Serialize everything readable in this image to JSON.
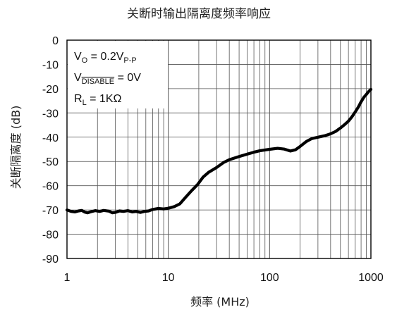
{
  "chart_data": {
    "type": "line",
    "title": "关断时输出隔离度频率响应",
    "xlabel": "频率 (MHz)",
    "ylabel": "关断隔离度 (dB)",
    "x_scale": "log",
    "xlim": [
      1,
      1000
    ],
    "ylim": [
      -90,
      0
    ],
    "x_ticks": [
      "1",
      "10",
      "100",
      "1000"
    ],
    "y_ticks": [
      "0",
      "-10",
      "-20",
      "-30",
      "-40",
      "-50",
      "-60",
      "-70",
      "-80",
      "-90"
    ],
    "grid": true,
    "annotations": [
      {
        "main": "V",
        "sub": "O",
        "suffix": " = 0.2V",
        "sub2": "P-P"
      },
      {
        "main": "V",
        "sub": "DISABLE",
        "suffix": " = 0V",
        "overline": true
      },
      {
        "main": "R",
        "sub": "L",
        "suffix": " = 1KΩ"
      }
    ],
    "series": [
      {
        "color": "#000000",
        "points": [
          [
            1.0,
            -70.0
          ],
          [
            1.1,
            -70.6
          ],
          [
            1.2,
            -70.8
          ],
          [
            1.3,
            -70.4
          ],
          [
            1.4,
            -70.2
          ],
          [
            1.5,
            -70.9
          ],
          [
            1.6,
            -71.2
          ],
          [
            1.7,
            -70.8
          ],
          [
            1.9,
            -70.3
          ],
          [
            2.1,
            -70.6
          ],
          [
            2.3,
            -70.2
          ],
          [
            2.6,
            -70.5
          ],
          [
            2.8,
            -71.2
          ],
          [
            3.0,
            -71.0
          ],
          [
            3.3,
            -70.4
          ],
          [
            3.6,
            -70.6
          ],
          [
            4.0,
            -70.3
          ],
          [
            4.4,
            -70.8
          ],
          [
            4.8,
            -70.6
          ],
          [
            5.3,
            -71.0
          ],
          [
            5.8,
            -70.6
          ],
          [
            6.4,
            -70.4
          ],
          [
            7.0,
            -69.8
          ],
          [
            8.0,
            -69.4
          ],
          [
            9.0,
            -69.6
          ],
          [
            10.0,
            -69.3
          ],
          [
            11.5,
            -68.6
          ],
          [
            13.0,
            -67.5
          ],
          [
            15.0,
            -64.5
          ],
          [
            17.0,
            -62.0
          ],
          [
            19.5,
            -59.5
          ],
          [
            22.0,
            -56.5
          ],
          [
            25.0,
            -54.5
          ],
          [
            30.0,
            -52.5
          ],
          [
            35.0,
            -50.5
          ],
          [
            40.0,
            -49.3
          ],
          [
            50.0,
            -48.0
          ],
          [
            60.0,
            -47.0
          ],
          [
            70.0,
            -46.2
          ],
          [
            80.0,
            -45.6
          ],
          [
            100.0,
            -45.0
          ],
          [
            120.0,
            -44.6
          ],
          [
            140.0,
            -44.9
          ],
          [
            160.0,
            -45.7
          ],
          [
            180.0,
            -45.2
          ],
          [
            200.0,
            -43.8
          ],
          [
            230.0,
            -41.8
          ],
          [
            260.0,
            -40.6
          ],
          [
            300.0,
            -40.0
          ],
          [
            350.0,
            -39.4
          ],
          [
            400.0,
            -38.6
          ],
          [
            450.0,
            -37.6
          ],
          [
            500.0,
            -36.2
          ],
          [
            550.0,
            -34.8
          ],
          [
            600.0,
            -33.4
          ],
          [
            650.0,
            -31.6
          ],
          [
            700.0,
            -29.6
          ],
          [
            750.0,
            -27.6
          ],
          [
            800.0,
            -25.4
          ],
          [
            850.0,
            -23.6
          ],
          [
            900.0,
            -22.4
          ],
          [
            950.0,
            -21.2
          ],
          [
            1000.0,
            -20.3
          ]
        ]
      }
    ]
  }
}
